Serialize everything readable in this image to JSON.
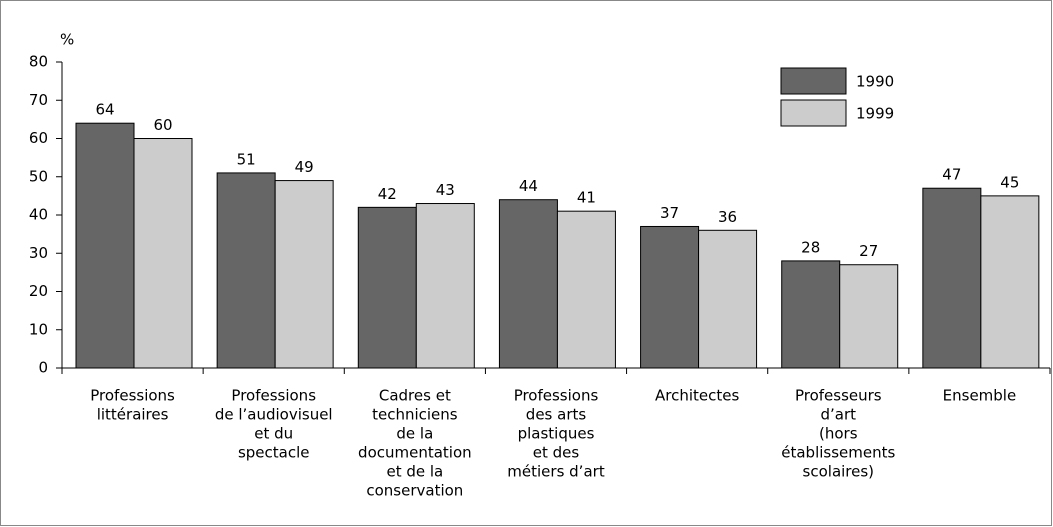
{
  "chart_data": {
    "type": "bar",
    "y_label": "%",
    "categories": [
      [
        "Professions",
        "littéraires"
      ],
      [
        "Professions",
        "de l’audiovisuel",
        "et du",
        "spectacle"
      ],
      [
        "Cadres et",
        "techniciens",
        "de la",
        "documentation",
        "et de la",
        "conservation"
      ],
      [
        "Professions",
        "des arts",
        "plastiques",
        "et des",
        "métiers d’art"
      ],
      [
        "Architectes"
      ],
      [
        "Professeurs",
        "d’art",
        "(hors",
        "établissements",
        "scolaires)"
      ],
      [
        "Ensemble"
      ]
    ],
    "series": [
      {
        "name": "1990",
        "color": "#666666",
        "values": [
          64,
          51,
          42,
          44,
          37,
          28,
          47
        ]
      },
      {
        "name": "1999",
        "color": "#cccccc",
        "values": [
          60,
          49,
          43,
          41,
          36,
          27,
          45
        ]
      }
    ],
    "ylim": [
      0,
      80
    ],
    "yticks": [
      0,
      10,
      20,
      30,
      40,
      50,
      60,
      70,
      80
    ],
    "legend": "upper right",
    "value_labels_shown": true
  }
}
